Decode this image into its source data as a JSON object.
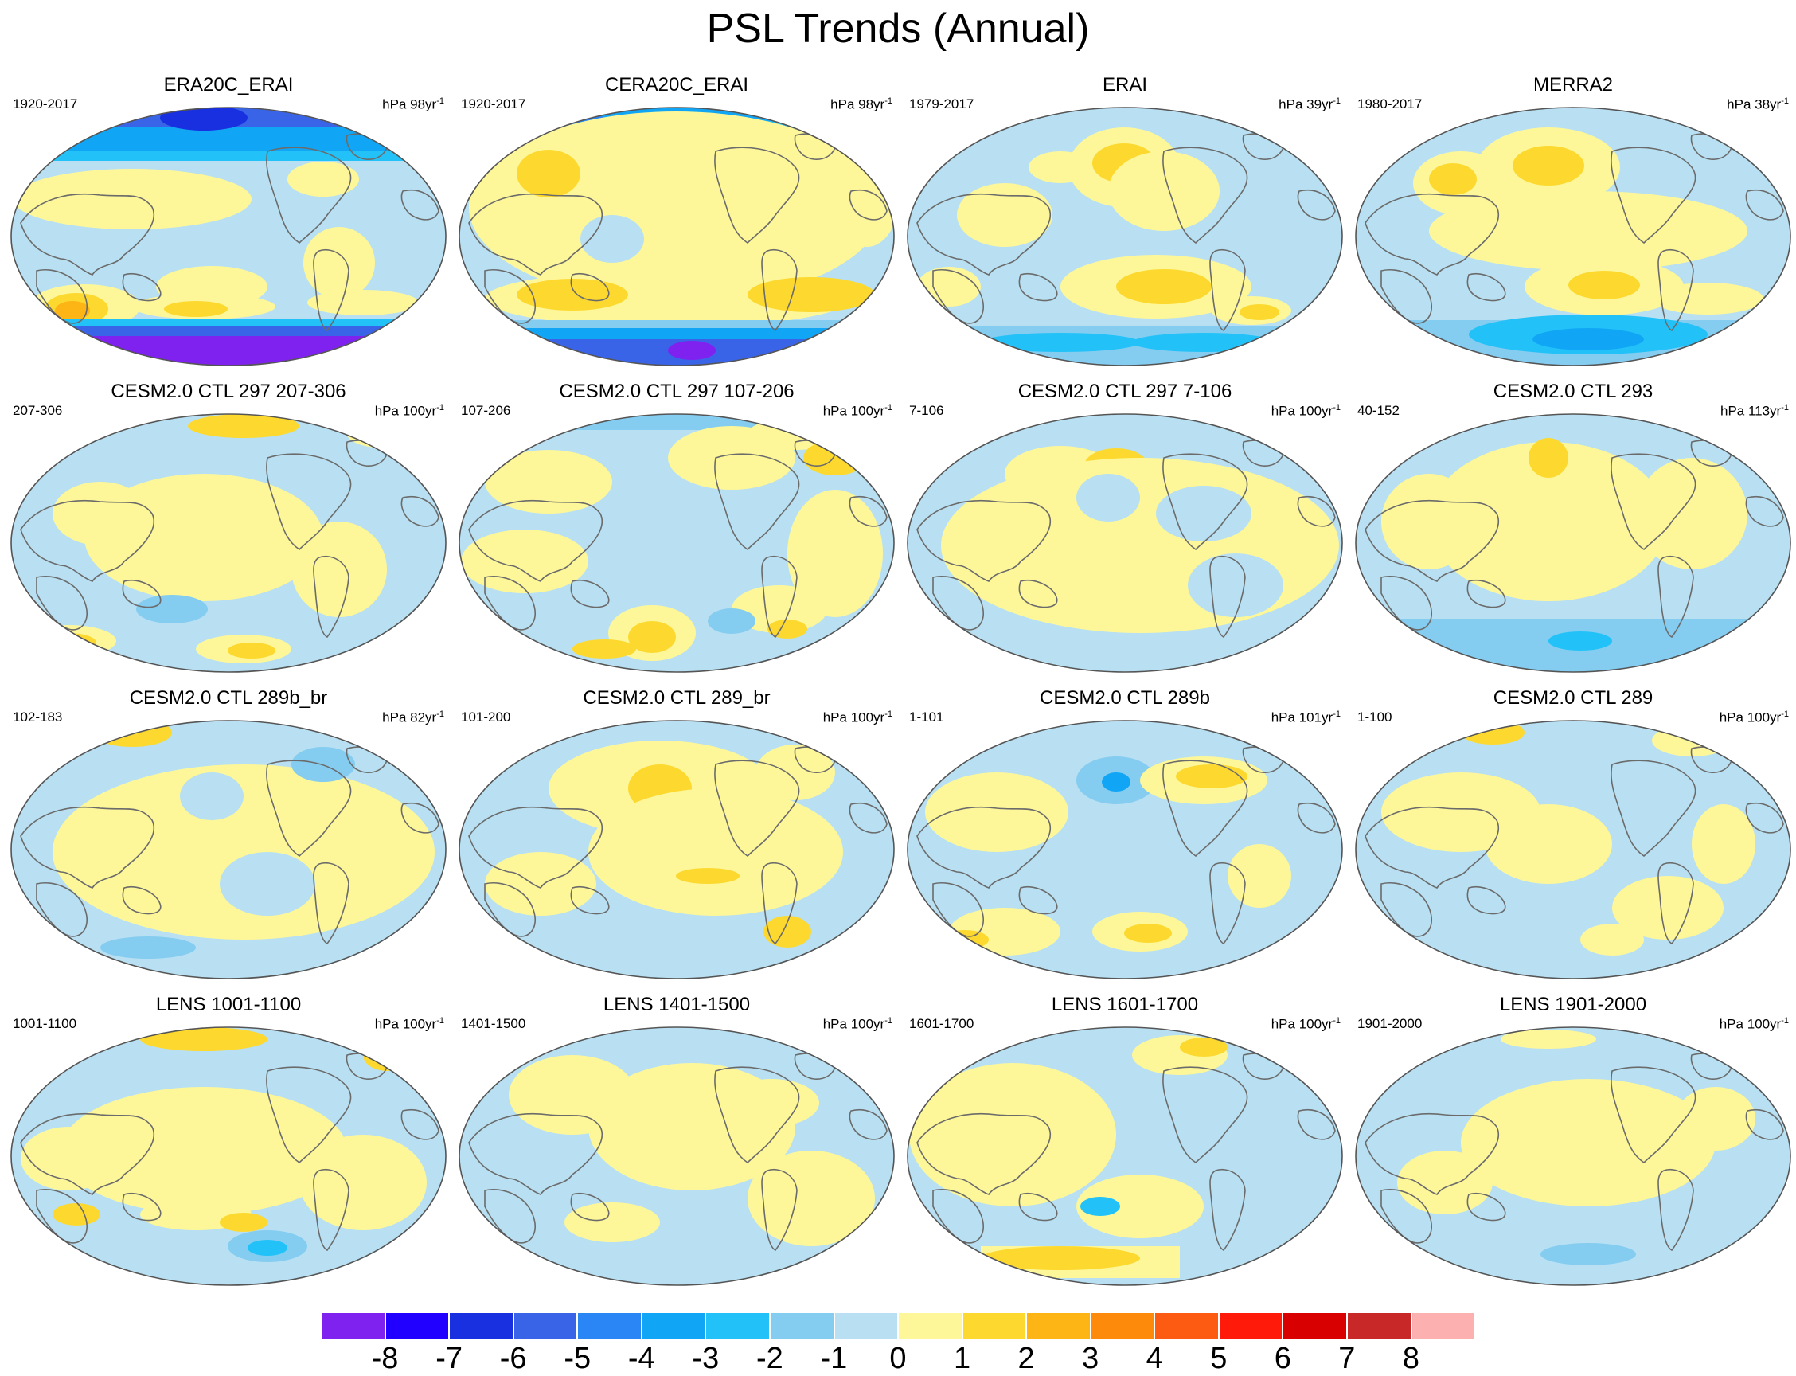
{
  "title": "PSL Trends (Annual)",
  "colors": {
    "levels": [
      "#7f22f0",
      "#2200ff",
      "#1830e0",
      "#3a64e8",
      "#2a86f5",
      "#11a6f5",
      "#22c2f8",
      "#84ccf0",
      "#b8e0f2",
      "#fdf799",
      "#fdd930",
      "#fdb415",
      "#fd8a0a",
      "#fd5a12",
      "#ff1a0a",
      "#d80000",
      "#c82828",
      "#fdb0b0"
    ],
    "coast": "#6b6b6b",
    "outline": "#555555"
  },
  "colorbar": {
    "labels": [
      "-8",
      "-7",
      "-6",
      "-5",
      "-4",
      "-3",
      "-2",
      "-1",
      "0",
      "1",
      "2",
      "3",
      "4",
      "5",
      "6",
      "7",
      "8"
    ]
  },
  "panels": [
    {
      "title": "ERA20C_ERAI",
      "period": "1920-2017",
      "units": "hPa 98yr",
      "units_sup": "-1",
      "pattern": "era20c"
    },
    {
      "title": "CERA20C_ERAI",
      "period": "1920-2017",
      "units": "hPa 98yr",
      "units_sup": "-1",
      "pattern": "cera20c"
    },
    {
      "title": "ERAI",
      "period": "1979-2017",
      "units": "hPa 39yr",
      "units_sup": "-1",
      "pattern": "erai"
    },
    {
      "title": "MERRA2",
      "period": "1980-2017",
      "units": "hPa 38yr",
      "units_sup": "-1",
      "pattern": "merra2"
    },
    {
      "title": "CESM2.0 CTL 297 207-306",
      "period": "207-306",
      "units": "hPa 100yr",
      "units_sup": "-1",
      "pattern": "model_a"
    },
    {
      "title": "CESM2.0 CTL 297 107-206",
      "period": "107-206",
      "units": "hPa 100yr",
      "units_sup": "-1",
      "pattern": "model_b"
    },
    {
      "title": "CESM2.0 CTL 297 7-106",
      "period": "7-106",
      "units": "hPa 100yr",
      "units_sup": "-1",
      "pattern": "model_c"
    },
    {
      "title": "CESM2.0 CTL 293",
      "period": "40-152",
      "units": "hPa 113yr",
      "units_sup": "-1",
      "pattern": "model_d"
    },
    {
      "title": "CESM2.0 CTL 289b_br",
      "period": "102-183",
      "units": "hPa 82yr",
      "units_sup": "-1",
      "pattern": "model_e"
    },
    {
      "title": "CESM2.0 CTL 289_br",
      "period": "101-200",
      "units": "hPa 100yr",
      "units_sup": "-1",
      "pattern": "model_f"
    },
    {
      "title": "CESM2.0 CTL 289b",
      "period": "1-101",
      "units": "hPa 101yr",
      "units_sup": "-1",
      "pattern": "model_g"
    },
    {
      "title": "CESM2.0 CTL 289",
      "period": "1-100",
      "units": "hPa 100yr",
      "units_sup": "-1",
      "pattern": "model_h"
    },
    {
      "title": "LENS 1001-1100",
      "period": "1001-1100",
      "units": "hPa 100yr",
      "units_sup": "-1",
      "pattern": "lens_a"
    },
    {
      "title": "LENS 1401-1500",
      "period": "1401-1500",
      "units": "hPa 100yr",
      "units_sup": "-1",
      "pattern": "lens_b"
    },
    {
      "title": "LENS 1601-1700",
      "period": "1601-1700",
      "units": "hPa 100yr",
      "units_sup": "-1",
      "pattern": "lens_c"
    },
    {
      "title": "LENS 1901-2000",
      "period": "1901-2000",
      "units": "hPa 100yr",
      "units_sup": "-1",
      "pattern": "lens_d"
    }
  ]
}
